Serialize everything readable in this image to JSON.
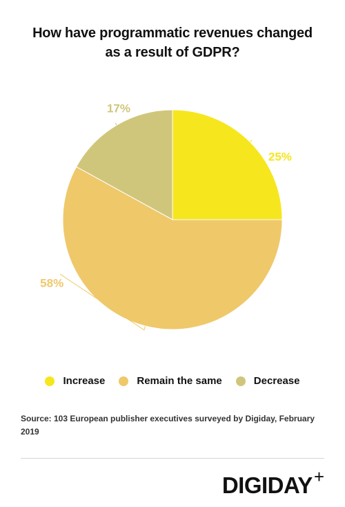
{
  "title_lines": [
    "How have programmatic revenues changed",
    "as a result of GDPR?"
  ],
  "chart_data": {
    "type": "pie",
    "categories": [
      "Increase",
      "Remain the same",
      "Decrease"
    ],
    "values": [
      25,
      58,
      17
    ],
    "labels": [
      "25%",
      "58%",
      "17%"
    ],
    "colors": [
      "#f6e61e",
      "#efc86a",
      "#d0c67b"
    ],
    "title": "How have programmatic revenues changed as a result of GDPR?",
    "legend_position": "bottom"
  },
  "legend": [
    {
      "label": "Increase",
      "color": "#f6e61e"
    },
    {
      "label": "Remain the same",
      "color": "#efc86a"
    },
    {
      "label": "Decrease",
      "color": "#d0c67b"
    }
  ],
  "source": "Source: 103 European publisher executives surveyed by Digiday, February 2019",
  "logo": {
    "text": "DIGIDAY",
    "plus": "+"
  }
}
